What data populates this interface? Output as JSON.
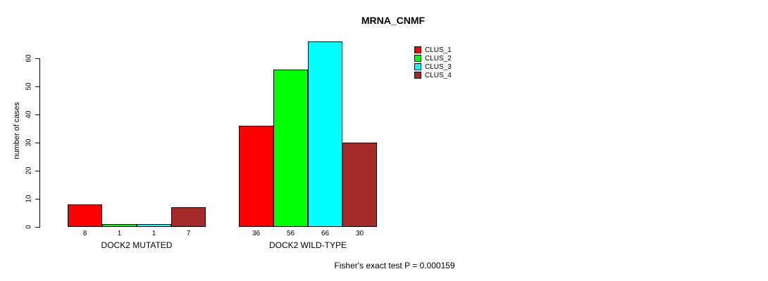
{
  "title": "MRNA_CNMF",
  "ylabel": "number of cases",
  "footer": "Fisher's exact test P = 0.000159",
  "chart_data": {
    "type": "bar",
    "title": "MRNA_CNMF",
    "ylabel": "number of cases",
    "xlabel": "",
    "annotation": "Fisher's exact test P = 0.000159",
    "categories": [
      "DOCK2 MUTATED",
      "DOCK2 WILD-TYPE"
    ],
    "series": [
      {
        "name": "CLUS_1",
        "color": "#FF0000",
        "values": [
          8,
          36
        ]
      },
      {
        "name": "CLUS_2",
        "color": "#00FF00",
        "values": [
          1,
          56
        ]
      },
      {
        "name": "CLUS_3",
        "color": "#00FFFF",
        "values": [
          1,
          66
        ]
      },
      {
        "name": "CLUS_4",
        "color": "#A52A2A",
        "values": [
          7,
          30
        ]
      }
    ],
    "bar_value_labels": [
      [
        8,
        1,
        1,
        7
      ],
      [
        36,
        56,
        66,
        30
      ]
    ],
    "yticks": [
      0,
      10,
      20,
      30,
      40,
      50,
      60
    ],
    "ylim": [
      0,
      66
    ],
    "grid": false,
    "legend_position": "right",
    "legend_box": false
  }
}
